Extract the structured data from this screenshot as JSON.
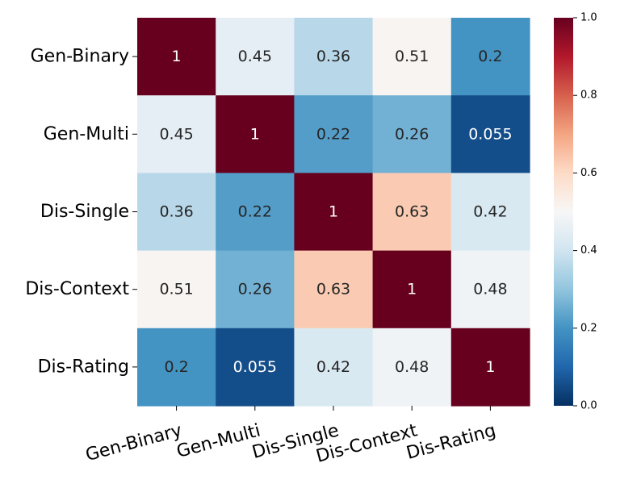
{
  "chart_data": {
    "type": "heatmap",
    "rows": [
      "Gen-Binary",
      "Gen-Multi",
      "Dis-Single",
      "Dis-Context",
      "Dis-Rating"
    ],
    "columns": [
      "Gen-Binary",
      "Gen-Multi",
      "Dis-Single",
      "Dis-Context",
      "Dis-Rating"
    ],
    "values": [
      [
        1,
        0.45,
        0.36,
        0.51,
        0.2
      ],
      [
        0.45,
        1,
        0.22,
        0.26,
        0.055
      ],
      [
        0.36,
        0.22,
        1,
        0.63,
        0.42
      ],
      [
        0.51,
        0.26,
        0.63,
        1,
        0.48
      ],
      [
        0.2,
        0.055,
        0.42,
        0.48,
        1
      ]
    ],
    "labels": [
      [
        "1",
        "0.45",
        "0.36",
        "0.51",
        "0.2"
      ],
      [
        "0.45",
        "1",
        "0.22",
        "0.26",
        "0.055"
      ],
      [
        "0.36",
        "0.22",
        "1",
        "0.63",
        "0.42"
      ],
      [
        "0.51",
        "0.26",
        "0.63",
        "1",
        "0.48"
      ],
      [
        "0.2",
        "0.055",
        "0.42",
        "0.48",
        "1"
      ]
    ],
    "colormap": "RdBu_r",
    "vmin": 0,
    "vmax": 1,
    "colorbar": {
      "ticks": [
        0,
        0.2,
        0.4,
        0.6,
        0.8,
        1.0
      ],
      "tick_labels": [
        "0.0",
        "0.2",
        "0.4",
        "0.6",
        "0.8",
        "1.0"
      ]
    },
    "title": "",
    "xlabel": "",
    "ylabel": ""
  }
}
